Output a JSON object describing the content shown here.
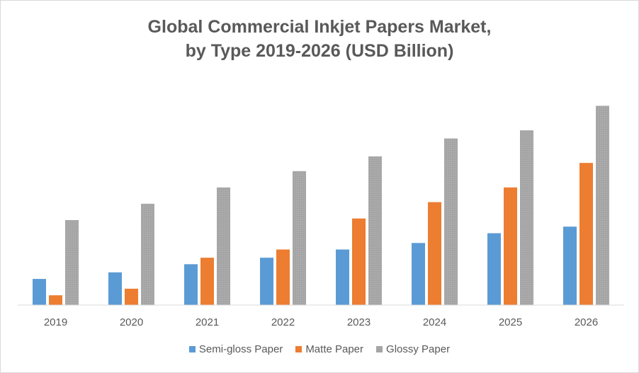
{
  "chart_data": {
    "type": "bar",
    "title": "Global Commercial Inkjet Papers Market,",
    "subtitle": "by Type 2019-2026 (USD Billion)",
    "xlabel": "",
    "ylabel": "",
    "categories": [
      "2019",
      "2020",
      "2021",
      "2022",
      "2023",
      "2024",
      "2025",
      "2026"
    ],
    "series": [
      {
        "name": "Semi-gloss Paper",
        "color": "#5B9BD5",
        "values": [
          0.8,
          1.0,
          1.25,
          1.45,
          1.7,
          1.9,
          2.2,
          2.4
        ]
      },
      {
        "name": "Matte Paper",
        "color": "#ED7D31",
        "values": [
          0.3,
          0.5,
          1.45,
          1.7,
          2.65,
          3.15,
          3.6,
          4.35
        ]
      },
      {
        "name": "Glossy Paper",
        "color": "#A5A5A5",
        "values": [
          2.6,
          3.1,
          3.6,
          4.1,
          4.55,
          5.1,
          5.35,
          6.1
        ]
      }
    ],
    "ylim": [
      0,
      6.5
    ],
    "grid": false,
    "legend": "bottom"
  }
}
